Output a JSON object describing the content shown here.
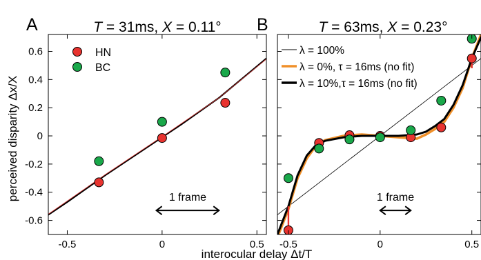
{
  "chart_data": [
    {
      "type": "scatter",
      "panel_letter": "A",
      "title": "T = 31ms, X = 0.11°",
      "title_parts": [
        {
          "text": "T",
          "italic": true
        },
        {
          "text": " = 31ms, ",
          "italic": false
        },
        {
          "text": "X",
          "italic": true
        },
        {
          "text": " = 0.11°",
          "italic": false
        }
      ],
      "xlabel": "interocular delay Δt/T",
      "ylabel": "perceived disparity  Δx/X",
      "xlim": [
        -0.6,
        0.55
      ],
      "ylim": [
        -0.7,
        0.72
      ],
      "xticks": [
        -0.5,
        0,
        0.5
      ],
      "xtick_labels": [
        "-0.5",
        "0",
        "0.5"
      ],
      "yticks": [
        0.6,
        0.4,
        0.2,
        0,
        -0.2,
        -0.4,
        -0.6
      ],
      "ytick_labels": [
        "0.6",
        "0.4",
        "0.2",
        "0",
        "-0.2",
        "-0.4",
        "-0.6"
      ],
      "grid": false,
      "legend": {
        "position": "top-left",
        "entries": [
          {
            "label": "HN",
            "series": "HN"
          },
          {
            "label": "BC",
            "series": "BC"
          }
        ]
      },
      "annotation": {
        "text": "1 frame",
        "arrow_x": [
          -0.03,
          0.3
        ],
        "arrow_y": -0.5
      },
      "series": [
        {
          "name": "HN",
          "kind": "points",
          "color": "#e8332f",
          "x": [
            -0.333,
            0,
            0.333
          ],
          "y": [
            -0.33,
            -0.015,
            0.235
          ]
        },
        {
          "name": "BC",
          "kind": "points",
          "color": "#19a84a",
          "x": [
            -0.333,
            0,
            0.333
          ],
          "y": [
            -0.18,
            0.1,
            0.45
          ]
        },
        {
          "kind": "curve",
          "color": "#000000",
          "width": 2.2,
          "x": [
            -0.6,
            -0.5,
            -0.3,
            -0.1,
            0,
            0.1,
            0.3,
            0.55
          ],
          "y": [
            -0.56,
            -0.47,
            -0.28,
            -0.1,
            -0.01,
            0.08,
            0.27,
            0.55
          ]
        },
        {
          "kind": "curve",
          "color": "#e8332f",
          "width": 0.7,
          "x": [
            -0.6,
            -0.3,
            0,
            0.3,
            0.55
          ],
          "y": [
            -0.555,
            -0.275,
            -0.005,
            0.27,
            0.545
          ]
        }
      ],
      "error_bars": []
    },
    {
      "type": "scatter",
      "panel_letter": "B",
      "title": "T = 63ms, X = 0.23°",
      "title_parts": [
        {
          "text": "T",
          "italic": true
        },
        {
          "text": " = 63ms, ",
          "italic": false
        },
        {
          "text": "X",
          "italic": true
        },
        {
          "text": " = 0.23°",
          "italic": false
        }
      ],
      "xlim": [
        -0.56,
        0.55
      ],
      "ylim": [
        -0.7,
        0.72
      ],
      "xticks": [
        -0.5,
        0,
        0.5
      ],
      "xtick_labels": [
        "-0.5",
        "0",
        "0.5"
      ],
      "yticks": [
        0.6,
        0.4,
        0.2,
        0,
        -0.2,
        -0.4,
        -0.6
      ],
      "grid": false,
      "legend": {
        "position": "top-left",
        "entries": [
          {
            "label": "λ = 100%",
            "style": "thin",
            "color": "#000000"
          },
          {
            "label": "λ = 0%, τ = 16ms (no fit)",
            "style": "thick",
            "color": "#f0902a"
          },
          {
            "label": "λ = 10%,τ = 16ms (no fit)",
            "style": "thick",
            "color": "#000000"
          }
        ]
      },
      "annotation": {
        "text": "1 frame",
        "arrow_x": [
          0,
          0.167
        ],
        "arrow_y": -0.5
      },
      "series": [
        {
          "name": "λ = 100%",
          "kind": "curve",
          "color": "#000000",
          "width": 0.8,
          "x": [
            -0.56,
            0.55
          ],
          "y": [
            -0.56,
            0.55
          ]
        },
        {
          "name": "λ = 0%, τ = 16ms (no fit)",
          "kind": "curve",
          "color": "#f0902a",
          "width": 3.6,
          "x": [
            -0.56,
            -0.5,
            -0.45,
            -0.4,
            -0.35,
            -0.3,
            -0.2,
            -0.1,
            0,
            0.1,
            0.2,
            0.25,
            0.3,
            0.35,
            0.4,
            0.45,
            0.5,
            0.55
          ],
          "y": [
            -0.72,
            -0.52,
            -0.3,
            -0.16,
            -0.07,
            -0.03,
            0.0,
            0.01,
            0.0,
            -0.01,
            -0.02,
            0.01,
            0.05,
            0.1,
            0.2,
            0.34,
            0.55,
            0.72
          ]
        },
        {
          "name": "λ = 10%,τ = 16ms (no fit)",
          "kind": "curve",
          "color": "#000000",
          "width": 3.0,
          "x": [
            -0.56,
            -0.5,
            -0.45,
            -0.4,
            -0.35,
            -0.3,
            -0.2,
            -0.1,
            0,
            0.1,
            0.2,
            0.25,
            0.3,
            0.35,
            0.4,
            0.45,
            0.5,
            0.55
          ],
          "y": [
            -0.7,
            -0.5,
            -0.28,
            -0.14,
            -0.065,
            -0.035,
            -0.01,
            0.0,
            0.0,
            0.0,
            0.01,
            0.03,
            0.07,
            0.12,
            0.22,
            0.36,
            0.55,
            0.7
          ]
        },
        {
          "name": "HN",
          "kind": "points",
          "color": "#e8332f",
          "x": [
            -0.5,
            -0.333,
            -0.167,
            0,
            0.167,
            0.333,
            0.5
          ],
          "y": [
            -0.67,
            -0.05,
            0.005,
            0.0,
            -0.01,
            0.06,
            0.55
          ]
        },
        {
          "name": "BC",
          "kind": "points",
          "color": "#19a84a",
          "x": [
            -0.5,
            -0.333,
            -0.167,
            0,
            0.167,
            0.333,
            0.5
          ],
          "y": [
            -0.3,
            -0.09,
            -0.025,
            -0.01,
            0.04,
            0.25,
            0.69
          ]
        }
      ],
      "error_bars": [
        {
          "x": -0.5,
          "y_from": -0.5,
          "y_to": -0.66,
          "color": "#e8332f"
        },
        {
          "x": 0.5,
          "y_from": 0.48,
          "y_to": 0.57,
          "color": "#e8332f"
        }
      ]
    }
  ]
}
